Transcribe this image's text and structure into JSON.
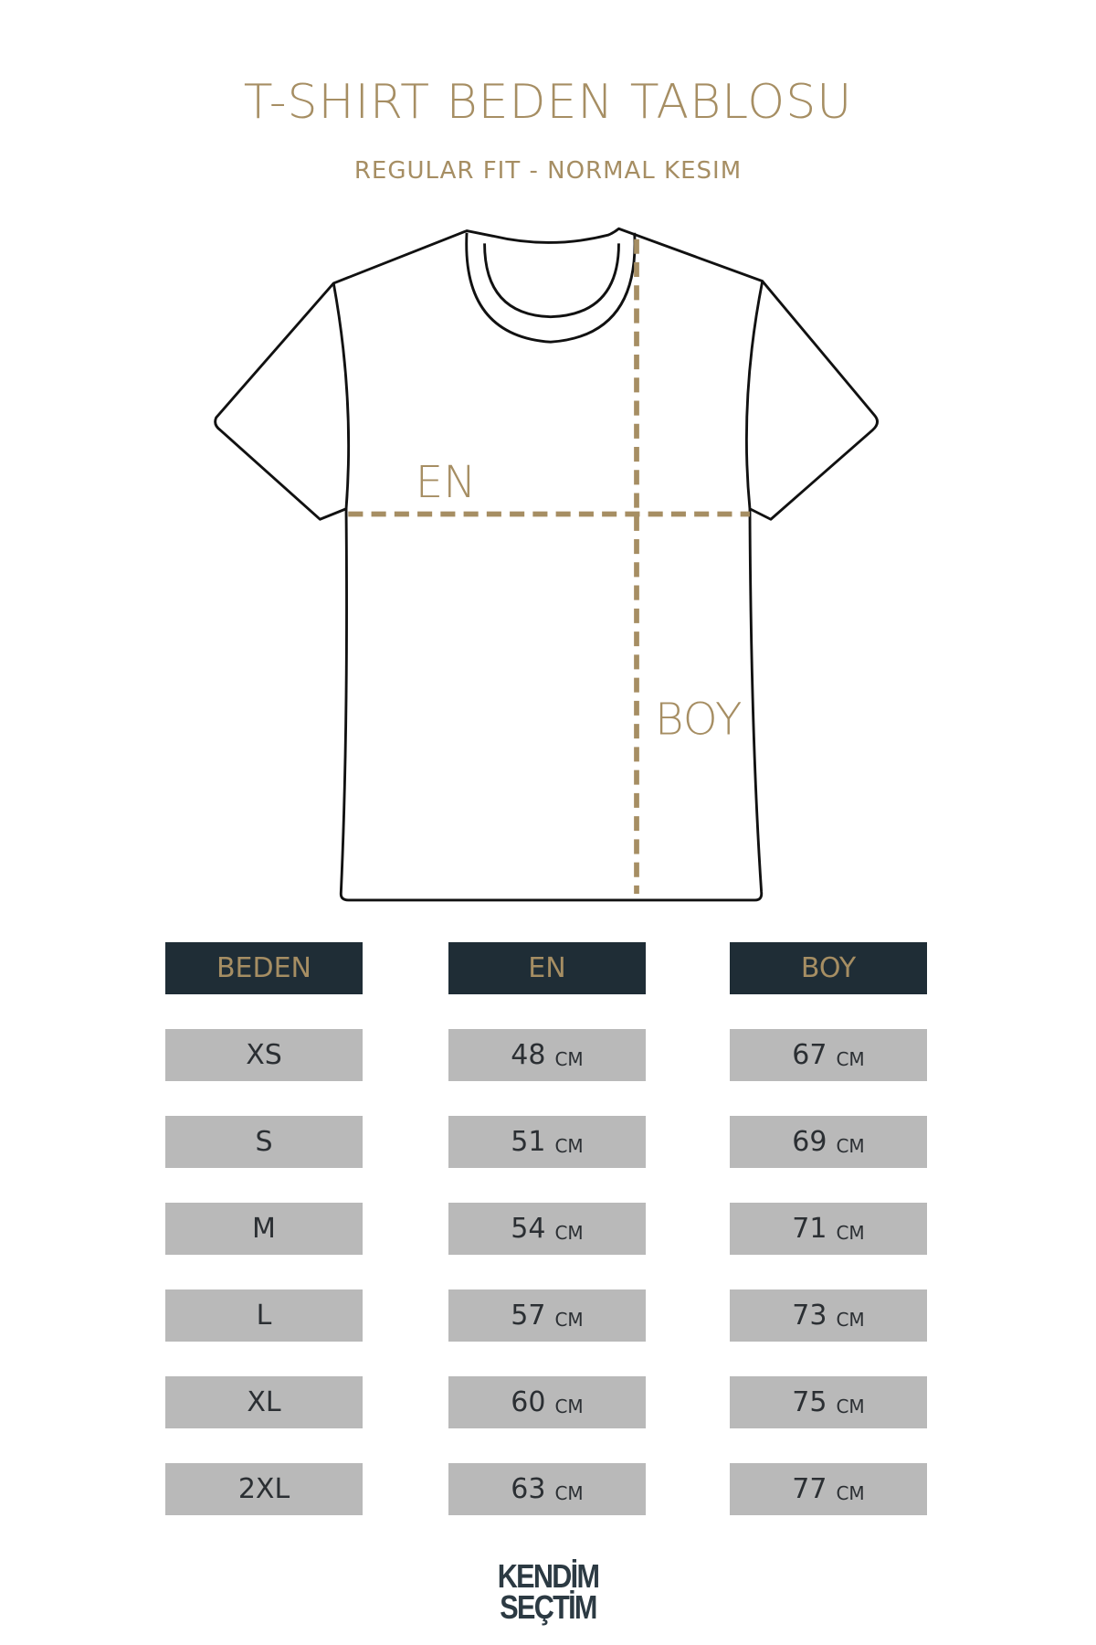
{
  "header": {
    "title": "T-SHIRT BEDEN TABLOSU",
    "subtitle": "REGULAR FIT - NORMAL KESIM"
  },
  "diagram": {
    "width_label": "EN",
    "length_label": "BOY"
  },
  "table": {
    "columns": [
      "BEDEN",
      "EN",
      "BOY"
    ],
    "unit": "CM",
    "rows": [
      {
        "size": "XS",
        "en": "48",
        "boy": "67"
      },
      {
        "size": "S",
        "en": "51",
        "boy": "69"
      },
      {
        "size": "M",
        "en": "54",
        "boy": "71"
      },
      {
        "size": "L",
        "en": "57",
        "boy": "73"
      },
      {
        "size": "XL",
        "en": "60",
        "boy": "75"
      },
      {
        "size": "2XL",
        "en": "63",
        "boy": "77"
      }
    ]
  },
  "logo": {
    "line1": "KENDİM",
    "line2": "SEÇTİM"
  },
  "colors": {
    "accent": "#a68e63",
    "header_bg": "#1f2d36",
    "cell_bg": "#b9b9b9"
  }
}
